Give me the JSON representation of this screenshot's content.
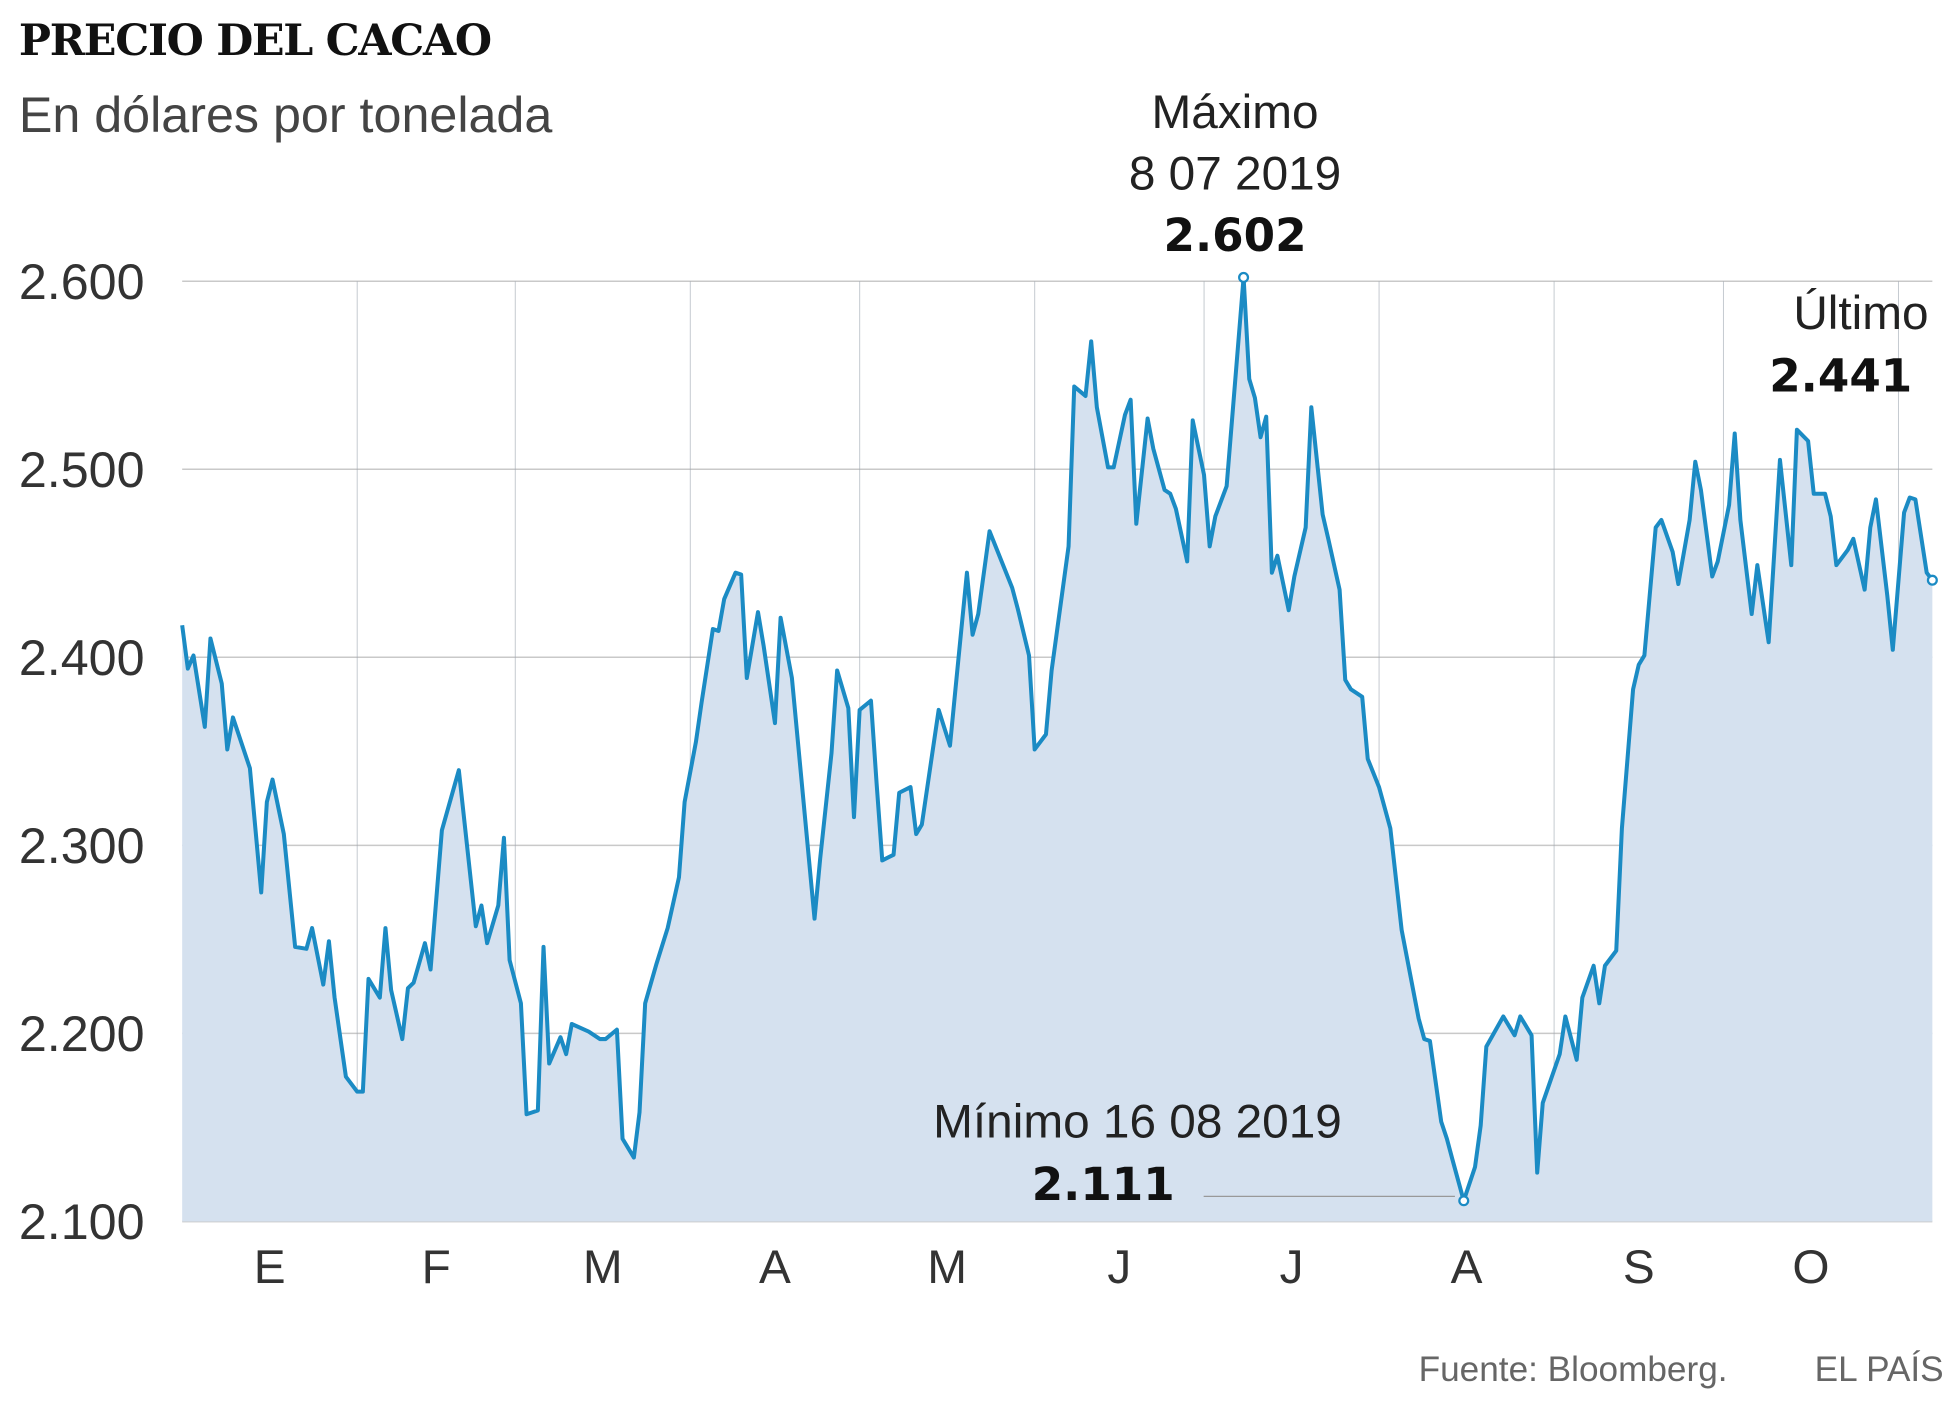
{
  "chart_data": {
    "type": "area",
    "title": "PRECIO DEL CACAO",
    "subtitle": "En dólares por tonelada",
    "xlabel": "",
    "ylabel": "",
    "xlim": [
      "2019-01-01",
      "2019-11-07"
    ],
    "ylim": [
      2100,
      2600
    ],
    "yticks": [
      2100,
      2200,
      2300,
      2400,
      2500,
      2600
    ],
    "ytick_labels": [
      "2.100",
      "2.200",
      "2.300",
      "2.400",
      "2.500",
      "2.600"
    ],
    "month_labels": [
      "E",
      "F",
      "M",
      "A",
      "M",
      "J",
      "J",
      "A",
      "S",
      "O"
    ],
    "grid": "horizontal and monthly vertical",
    "colors": {
      "line": "#1b8bc4",
      "fill": "#d5e1ef",
      "grid": "#c9c9c9"
    },
    "series": [
      {
        "points": [
          [
            "2019-01-01",
            2417
          ],
          [
            "2019-01-02",
            2394
          ],
          [
            "2019-01-03",
            2401
          ],
          [
            "2019-01-05",
            2363
          ],
          [
            "2019-01-06",
            2410
          ],
          [
            "2019-01-08",
            2386
          ],
          [
            "2019-01-09",
            2351
          ],
          [
            "2019-01-10",
            2368
          ],
          [
            "2019-01-13",
            2341
          ],
          [
            "2019-01-15",
            2275
          ],
          [
            "2019-01-16",
            2323
          ],
          [
            "2019-01-17",
            2335
          ],
          [
            "2019-01-19",
            2306
          ],
          [
            "2019-01-21",
            2246
          ],
          [
            "2019-01-23",
            2245
          ],
          [
            "2019-01-24",
            2256
          ],
          [
            "2019-01-26",
            2226
          ],
          [
            "2019-01-27",
            2249
          ],
          [
            "2019-01-28",
            2219
          ],
          [
            "2019-01-30",
            2177
          ],
          [
            "2019-02-01",
            2169
          ],
          [
            "2019-02-02",
            2169
          ],
          [
            "2019-02-03",
            2229
          ],
          [
            "2019-02-05",
            2219
          ],
          [
            "2019-02-06",
            2256
          ],
          [
            "2019-02-07",
            2223
          ],
          [
            "2019-02-09",
            2197
          ],
          [
            "2019-02-10",
            2224
          ],
          [
            "2019-02-11",
            2227
          ],
          [
            "2019-02-13",
            2248
          ],
          [
            "2019-02-14",
            2234
          ],
          [
            "2019-02-16",
            2308
          ],
          [
            "2019-02-19",
            2340
          ],
          [
            "2019-02-22",
            2257
          ],
          [
            "2019-02-23",
            2268
          ],
          [
            "2019-02-24",
            2248
          ],
          [
            "2019-02-26",
            2268
          ],
          [
            "2019-02-27",
            2304
          ],
          [
            "2019-02-28",
            2239
          ],
          [
            "2019-03-02",
            2216
          ],
          [
            "2019-03-03",
            2157
          ],
          [
            "2019-03-05",
            2159
          ],
          [
            "2019-03-06",
            2246
          ],
          [
            "2019-03-07",
            2184
          ],
          [
            "2019-03-09",
            2198
          ],
          [
            "2019-03-10",
            2189
          ],
          [
            "2019-03-11",
            2205
          ],
          [
            "2019-03-14",
            2201
          ],
          [
            "2019-03-16",
            2197
          ],
          [
            "2019-03-17",
            2197
          ],
          [
            "2019-03-19",
            2202
          ],
          [
            "2019-03-20",
            2144
          ],
          [
            "2019-03-22",
            2134
          ],
          [
            "2019-03-23",
            2158
          ],
          [
            "2019-03-24",
            2216
          ],
          [
            "2019-03-26",
            2237
          ],
          [
            "2019-03-28",
            2256
          ],
          [
            "2019-03-30",
            2283
          ],
          [
            "2019-03-31",
            2323
          ],
          [
            "2019-04-02",
            2355
          ],
          [
            "2019-04-03",
            2376
          ],
          [
            "2019-04-05",
            2415
          ],
          [
            "2019-04-06",
            2414
          ],
          [
            "2019-04-07",
            2431
          ],
          [
            "2019-04-09",
            2445
          ],
          [
            "2019-04-10",
            2444
          ],
          [
            "2019-04-11",
            2389
          ],
          [
            "2019-04-13",
            2424
          ],
          [
            "2019-04-14",
            2406
          ],
          [
            "2019-04-16",
            2365
          ],
          [
            "2019-04-17",
            2421
          ],
          [
            "2019-04-19",
            2389
          ],
          [
            "2019-04-23",
            2261
          ],
          [
            "2019-04-24",
            2293
          ],
          [
            "2019-04-26",
            2349
          ],
          [
            "2019-04-27",
            2393
          ],
          [
            "2019-04-29",
            2373
          ],
          [
            "2019-04-30",
            2315
          ],
          [
            "2019-05-01",
            2372
          ],
          [
            "2019-05-03",
            2377
          ],
          [
            "2019-05-04",
            2333
          ],
          [
            "2019-05-05",
            2292
          ],
          [
            "2019-05-07",
            2295
          ],
          [
            "2019-05-08",
            2328
          ],
          [
            "2019-05-10",
            2331
          ],
          [
            "2019-05-11",
            2306
          ],
          [
            "2019-05-12",
            2311
          ],
          [
            "2019-05-15",
            2372
          ],
          [
            "2019-05-17",
            2353
          ],
          [
            "2019-05-18",
            2384
          ],
          [
            "2019-05-20",
            2445
          ],
          [
            "2019-05-21",
            2412
          ],
          [
            "2019-05-22",
            2423
          ],
          [
            "2019-05-24",
            2467
          ],
          [
            "2019-05-28",
            2437
          ],
          [
            "2019-05-29",
            2426
          ],
          [
            "2019-05-31",
            2401
          ],
          [
            "2019-06-01",
            2351
          ],
          [
            "2019-06-03",
            2359
          ],
          [
            "2019-06-04",
            2393
          ],
          [
            "2019-06-07",
            2459
          ],
          [
            "2019-06-08",
            2544
          ],
          [
            "2019-06-10",
            2539
          ],
          [
            "2019-06-11",
            2568
          ],
          [
            "2019-06-12",
            2533
          ],
          [
            "2019-06-14",
            2501
          ],
          [
            "2019-06-15",
            2501
          ],
          [
            "2019-06-17",
            2529
          ],
          [
            "2019-06-18",
            2537
          ],
          [
            "2019-06-19",
            2471
          ],
          [
            "2019-06-21",
            2527
          ],
          [
            "2019-06-22",
            2511
          ],
          [
            "2019-06-24",
            2489
          ],
          [
            "2019-06-25",
            2487
          ],
          [
            "2019-06-26",
            2479
          ],
          [
            "2019-06-28",
            2451
          ],
          [
            "2019-06-29",
            2526
          ],
          [
            "2019-07-01",
            2497
          ],
          [
            "2019-07-02",
            2459
          ],
          [
            "2019-07-03",
            2475
          ],
          [
            "2019-07-05",
            2491
          ],
          [
            "2019-07-08",
            2602
          ],
          [
            "2019-07-09",
            2548
          ],
          [
            "2019-07-10",
            2538
          ],
          [
            "2019-07-11",
            2517
          ],
          [
            "2019-07-12",
            2528
          ],
          [
            "2019-07-13",
            2445
          ],
          [
            "2019-07-14",
            2454
          ],
          [
            "2019-07-16",
            2425
          ],
          [
            "2019-07-17",
            2443
          ],
          [
            "2019-07-19",
            2469
          ],
          [
            "2019-07-20",
            2533
          ],
          [
            "2019-07-22",
            2476
          ],
          [
            "2019-07-23",
            2463
          ],
          [
            "2019-07-25",
            2436
          ],
          [
            "2019-07-26",
            2388
          ],
          [
            "2019-07-27",
            2383
          ],
          [
            "2019-07-29",
            2379
          ],
          [
            "2019-07-30",
            2346
          ],
          [
            "2019-08-01",
            2331
          ],
          [
            "2019-08-03",
            2309
          ],
          [
            "2019-08-05",
            2255
          ],
          [
            "2019-08-08",
            2208
          ],
          [
            "2019-08-09",
            2197
          ],
          [
            "2019-08-10",
            2196
          ],
          [
            "2019-08-12",
            2153
          ],
          [
            "2019-08-13",
            2144
          ],
          [
            "2019-08-14",
            2133
          ],
          [
            "2019-08-16",
            2111
          ],
          [
            "2019-08-18",
            2129
          ],
          [
            "2019-08-19",
            2151
          ],
          [
            "2019-08-20",
            2193
          ],
          [
            "2019-08-23",
            2209
          ],
          [
            "2019-08-25",
            2199
          ],
          [
            "2019-08-26",
            2209
          ],
          [
            "2019-08-28",
            2199
          ],
          [
            "2019-08-29",
            2126
          ],
          [
            "2019-08-30",
            2163
          ],
          [
            "2019-09-02",
            2189
          ],
          [
            "2019-09-03",
            2209
          ],
          [
            "2019-09-05",
            2186
          ],
          [
            "2019-09-06",
            2219
          ],
          [
            "2019-09-08",
            2236
          ],
          [
            "2019-09-09",
            2216
          ],
          [
            "2019-09-10",
            2236
          ],
          [
            "2019-09-12",
            2244
          ],
          [
            "2019-09-13",
            2309
          ],
          [
            "2019-09-15",
            2383
          ],
          [
            "2019-09-16",
            2396
          ],
          [
            "2019-09-17",
            2401
          ],
          [
            "2019-09-19",
            2469
          ],
          [
            "2019-09-20",
            2473
          ],
          [
            "2019-09-22",
            2456
          ],
          [
            "2019-09-23",
            2439
          ],
          [
            "2019-09-25",
            2473
          ],
          [
            "2019-09-26",
            2504
          ],
          [
            "2019-09-27",
            2489
          ],
          [
            "2019-09-29",
            2443
          ],
          [
            "2019-09-30",
            2451
          ],
          [
            "2019-10-02",
            2481
          ],
          [
            "2019-10-03",
            2519
          ],
          [
            "2019-10-04",
            2473
          ],
          [
            "2019-10-06",
            2423
          ],
          [
            "2019-10-07",
            2449
          ],
          [
            "2019-10-09",
            2408
          ],
          [
            "2019-10-10",
            2456
          ],
          [
            "2019-10-11",
            2505
          ],
          [
            "2019-10-13",
            2449
          ],
          [
            "2019-10-14",
            2521
          ],
          [
            "2019-10-16",
            2515
          ],
          [
            "2019-10-17",
            2487
          ],
          [
            "2019-10-19",
            2487
          ],
          [
            "2019-10-20",
            2475
          ],
          [
            "2019-10-21",
            2449
          ],
          [
            "2019-10-23",
            2457
          ],
          [
            "2019-10-24",
            2463
          ],
          [
            "2019-10-26",
            2436
          ],
          [
            "2019-10-27",
            2469
          ],
          [
            "2019-10-28",
            2484
          ],
          [
            "2019-10-30",
            2433
          ],
          [
            "2019-10-31",
            2404
          ],
          [
            "2019-11-02",
            2477
          ],
          [
            "2019-11-03",
            2485
          ],
          [
            "2019-11-04",
            2484
          ],
          [
            "2019-11-06",
            2445
          ],
          [
            "2019-11-07",
            2441
          ]
        ]
      }
    ],
    "annotations": {
      "max": {
        "label": "Máximo",
        "date_text": "8 07 2019",
        "value_text": "2.602",
        "date": "2019-07-08",
        "value": 2602
      },
      "min": {
        "label": "Mínimo 16 08 2019",
        "value_text": "2.111",
        "date": "2019-08-16",
        "value": 2111
      },
      "last": {
        "label": "Último",
        "value_text": "2.441",
        "date": "2019-11-07",
        "value": 2441
      }
    }
  },
  "footer": {
    "source": "Fuente: Bloomberg.",
    "brand": "EL PAÍS"
  }
}
